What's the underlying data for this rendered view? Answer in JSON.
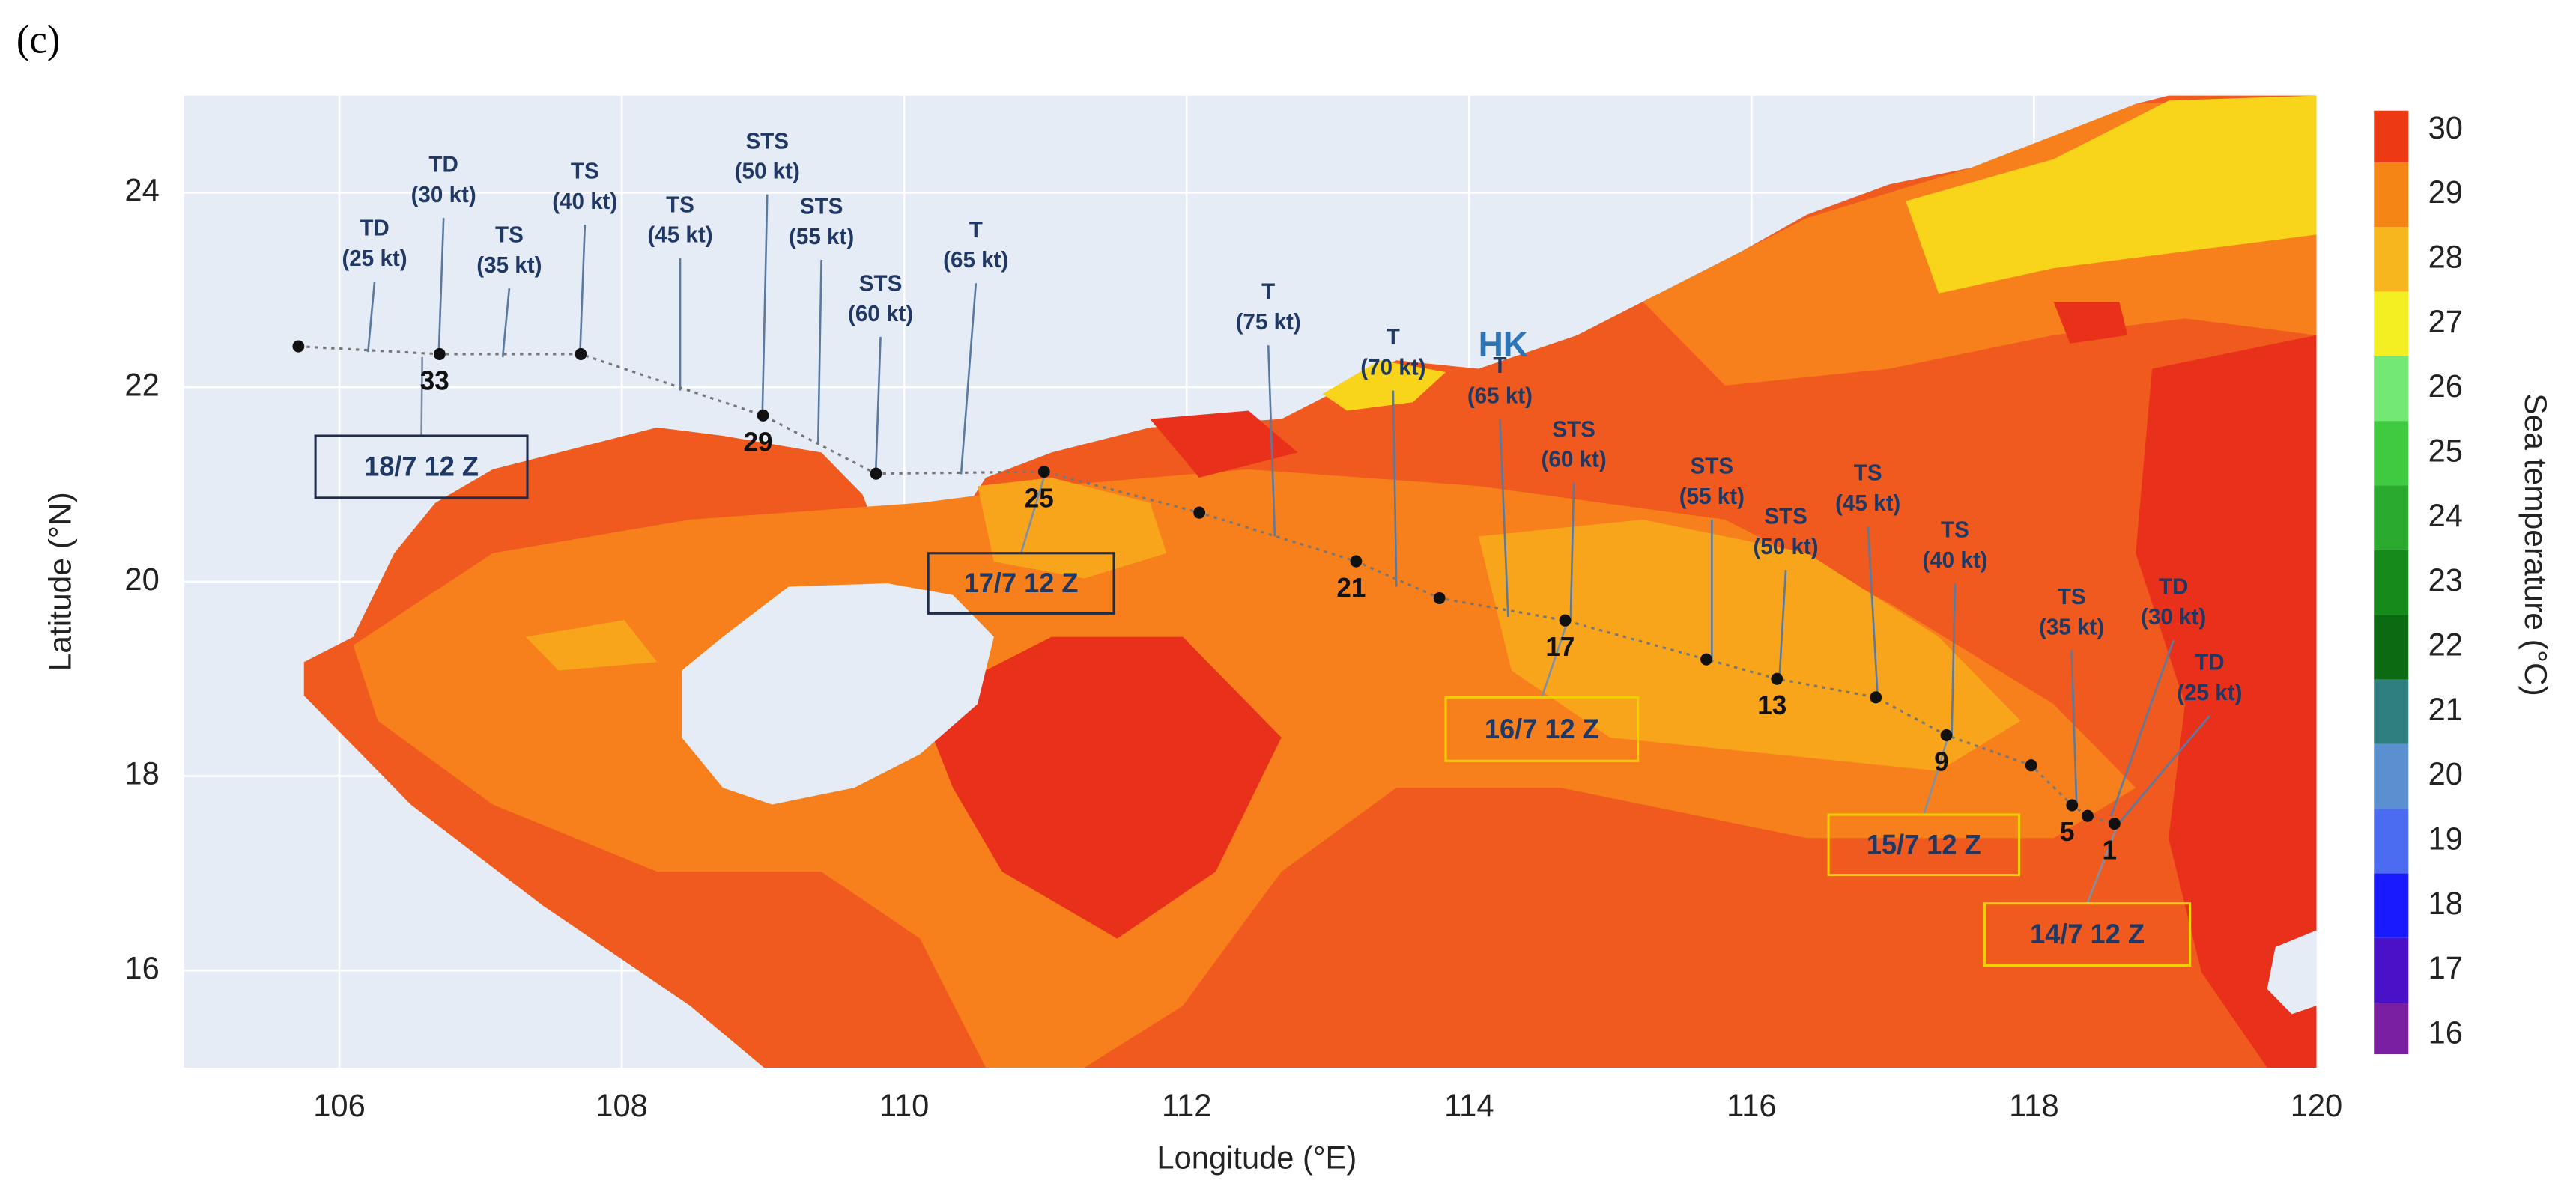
{
  "panel_label": "(c)",
  "chart_data": {
    "type": "track-map",
    "xlabel": "Longitude (°E)",
    "ylabel": "Latitude (°N)",
    "xlim": [
      104.9,
      120
    ],
    "ylim": [
      15,
      25
    ],
    "xticks": [
      106,
      108,
      110,
      112,
      114,
      116,
      118,
      120
    ],
    "yticks": [
      16,
      18,
      20,
      22,
      24
    ],
    "grid": true,
    "colorbar": {
      "label": "Sea temperature  (°C)",
      "lim": [
        15.7,
        30.3
      ],
      "ticks": [
        16,
        17,
        18,
        19,
        20,
        21,
        22,
        23,
        24,
        25,
        26,
        27,
        28,
        29,
        30
      ],
      "colors": [
        "#7b1fa2",
        "#4a12c8",
        "#1a1aff",
        "#4b6cf0",
        "#5a8fd0",
        "#2f7f80",
        "#0b6a12",
        "#178a1c",
        "#2aaa2e",
        "#3fca40",
        "#74e874",
        "#f4ef22",
        "#f7b51e",
        "#f58514",
        "#ee3a14"
      ]
    },
    "track": {
      "color": "#111111",
      "lon": [
        105.71,
        106.71,
        107.71,
        109.0,
        109.8,
        110.99,
        112.09,
        113.2,
        113.79,
        114.68,
        115.68,
        116.18,
        116.88,
        117.38,
        117.98,
        118.27,
        118.38,
        118.57
      ],
      "lat": [
        22.42,
        22.34,
        22.34,
        21.71,
        21.11,
        21.13,
        20.71,
        20.21,
        19.83,
        19.6,
        19.2,
        19.0,
        18.81,
        18.42,
        18.11,
        17.7,
        17.59,
        17.51
      ],
      "labels": [
        null,
        "33",
        null,
        "29",
        null,
        "25",
        null,
        "21",
        null,
        "17",
        null,
        "13",
        null,
        "9",
        null,
        "5",
        null,
        "1"
      ]
    },
    "intensity_labels": [
      {
        "class": "TD",
        "speed": "(25 kt)"
      },
      {
        "class": "TD",
        "speed": "(30 kt)"
      },
      {
        "class": "TS",
        "speed": "(35 kt)"
      },
      {
        "class": "TS",
        "speed": "(40 kt)"
      },
      {
        "class": "TS",
        "speed": "(45 kt)"
      },
      {
        "class": "STS",
        "speed": "(50 kt)"
      },
      {
        "class": "STS",
        "speed": "(55 kt)"
      },
      {
        "class": "STS",
        "speed": "(60 kt)"
      },
      {
        "class": "T",
        "speed": "(65 kt)"
      },
      {
        "class": "T",
        "speed": "(75 kt)"
      },
      {
        "class": "T",
        "speed": "(70 kt)"
      },
      {
        "class": "T",
        "speed": "(65 kt)"
      },
      {
        "class": "STS",
        "speed": "(60 kt)"
      },
      {
        "class": "STS",
        "speed": "(55 kt)"
      },
      {
        "class": "STS",
        "speed": "(50 kt)"
      },
      {
        "class": "TS",
        "speed": "(45 kt)"
      },
      {
        "class": "TS",
        "speed": "(40 kt)"
      },
      {
        "class": "TS",
        "speed": "(35 kt)"
      },
      {
        "class": "TD",
        "speed": "(30 kt)"
      },
      {
        "class": "TD",
        "speed": "(25 kt)"
      }
    ],
    "date_labels": [
      "18/7 12 Z",
      "17/7 12 Z",
      "16/7 12 Z",
      "15/7 12 Z",
      "14/7 12 Z"
    ],
    "place_label": "HK"
  }
}
